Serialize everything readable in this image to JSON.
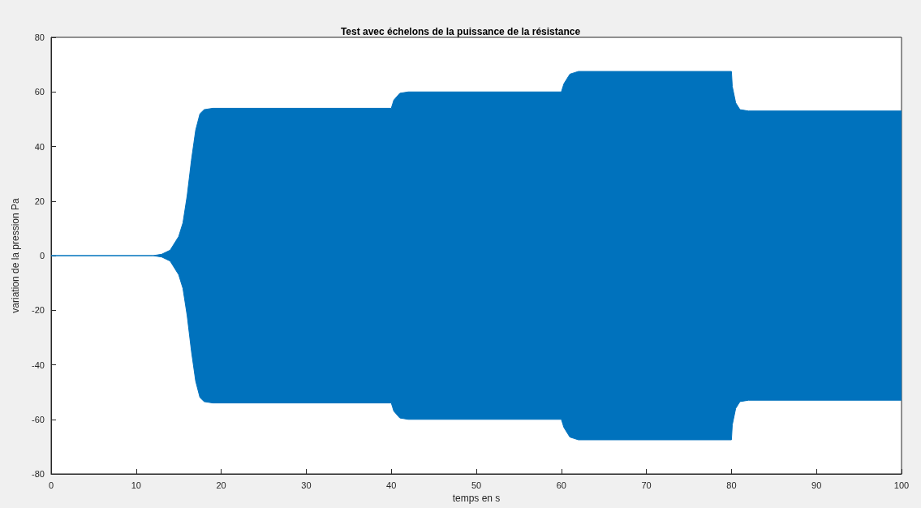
{
  "chart_data": {
    "type": "area",
    "title": "Test avec échelons de la puissance de la résistance",
    "xlabel": "temps en s",
    "ylabel": "variation de la pression Pa",
    "x": [
      0,
      12,
      13,
      14,
      15,
      15.5,
      16,
      16.5,
      17,
      17.5,
      18,
      19,
      40,
      40.3,
      41,
      42,
      60,
      60.3,
      61,
      62,
      80,
      80.1,
      80.5,
      81,
      82,
      100
    ],
    "series": [
      {
        "color": "#0072bd",
        "values": [
          0,
          0,
          0.5,
          2,
          7,
          12,
          22,
          35,
          46,
          52,
          53.5,
          54,
          54,
          57,
          59.5,
          60,
          60,
          63,
          66.5,
          67.5,
          67.5,
          62,
          56,
          53.5,
          53,
          53
        ]
      },
      {
        "color": "#0072bd",
        "values": [
          0,
          0,
          -0.5,
          -2,
          -7,
          -12,
          -22,
          -35,
          -46,
          -52,
          -53.5,
          -54,
          -54,
          -57,
          -59.5,
          -60,
          -60,
          -63,
          -66.5,
          -67.5,
          -67.5,
          -62,
          -56,
          -53.5,
          -53,
          -53
        ]
      }
    ],
    "xlim": [
      0,
      100
    ],
    "xticks": [
      0,
      10,
      20,
      30,
      40,
      50,
      60,
      70,
      80,
      90,
      100
    ],
    "ylim": [
      -80,
      80
    ],
    "yticks": [
      -80,
      -60,
      -40,
      -20,
      0,
      20,
      40,
      60,
      80
    ],
    "grid": false
  }
}
